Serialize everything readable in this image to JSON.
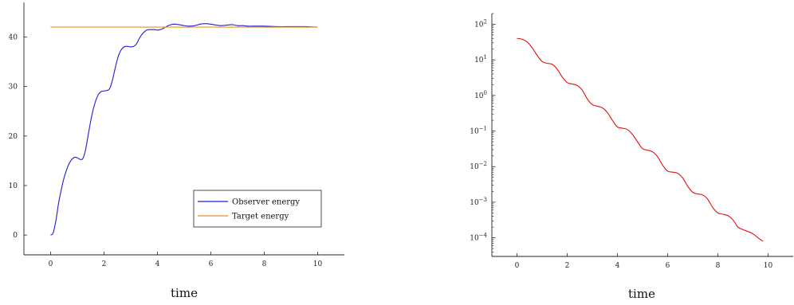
{
  "chart_data": [
    {
      "type": "line",
      "xlabel": "time",
      "ylabel": "",
      "title": "",
      "xlim": [
        -1,
        11
      ],
      "ylim": [
        -4,
        47
      ],
      "xticks": [
        0,
        2,
        4,
        6,
        8,
        10
      ],
      "yticks": [
        0,
        10,
        20,
        30,
        40
      ],
      "xtick_labels": [
        "0",
        "2",
        "4",
        "6",
        "8",
        "10"
      ],
      "ytick_labels": [
        "0",
        "10",
        "20",
        "30",
        "40"
      ],
      "legend_position": "bottom-right",
      "series": [
        {
          "name": "Observer energy",
          "color": "#1f1fd0",
          "x": [
            0,
            0.05,
            0.1,
            0.2,
            0.3,
            0.4,
            0.5,
            0.6,
            0.7,
            0.8,
            0.9,
            1.0,
            1.1,
            1.2,
            1.3,
            1.4,
            1.5,
            1.6,
            1.7,
            1.8,
            1.9,
            2.0,
            2.1,
            2.2,
            2.3,
            2.4,
            2.5,
            2.6,
            2.7,
            2.8,
            2.9,
            3.0,
            3.1,
            3.2,
            3.3,
            3.4,
            3.5,
            3.6,
            3.7,
            3.8,
            3.9,
            4.0,
            4.1,
            4.2,
            4.3,
            4.4,
            4.6,
            4.8,
            5.0,
            5.2,
            5.4,
            5.6,
            5.8,
            6.0,
            6.2,
            6.4,
            6.6,
            6.8,
            7.0,
            7.2,
            7.4,
            7.6,
            7.8,
            8.0,
            8.5,
            9.0,
            9.5,
            10.0
          ],
          "y": [
            0,
            0.1,
            0.5,
            3.0,
            6.5,
            9.2,
            11.5,
            13.2,
            14.5,
            15.3,
            15.7,
            15.6,
            15.3,
            15.4,
            17.0,
            20.0,
            23.0,
            25.5,
            27.3,
            28.5,
            29.0,
            29.1,
            29.2,
            29.5,
            31.0,
            33.3,
            35.5,
            37.0,
            37.8,
            38.1,
            38.1,
            38.0,
            38.1,
            38.5,
            39.5,
            40.4,
            41.0,
            41.4,
            41.5,
            41.5,
            41.5,
            41.4,
            41.5,
            41.7,
            42.0,
            42.3,
            42.6,
            42.5,
            42.3,
            42.2,
            42.3,
            42.6,
            42.7,
            42.6,
            42.4,
            42.3,
            42.4,
            42.5,
            42.3,
            42.3,
            42.2,
            42.2,
            42.2,
            42.2,
            42.1,
            42.1,
            42.1,
            42.0
          ]
        },
        {
          "name": "Target energy",
          "color": "#e8902a",
          "x": [
            0,
            10
          ],
          "y": [
            42.0,
            42.0
          ]
        }
      ]
    },
    {
      "type": "line",
      "xlabel": "time",
      "ylabel": "",
      "title": "",
      "xlim": [
        -1,
        11
      ],
      "yscale": "log",
      "ylim": [
        3e-05,
        200
      ],
      "xticks": [
        0,
        2,
        4,
        6,
        8,
        10
      ],
      "xtick_labels": [
        "0",
        "2",
        "4",
        "6",
        "8",
        "10"
      ],
      "yticks": [
        0.0001,
        0.001,
        0.01,
        0.1,
        1,
        10,
        100
      ],
      "ytick_labels": [
        {
          "base": "10",
          "exp": "−4"
        },
        {
          "base": "10",
          "exp": "−3"
        },
        {
          "base": "10",
          "exp": "−2"
        },
        {
          "base": "10",
          "exp": "−1"
        },
        {
          "base": "10",
          "exp": "0"
        },
        {
          "base": "10",
          "exp": "1"
        },
        {
          "base": "10",
          "exp": "2"
        }
      ],
      "series": [
        {
          "color": "#e01010",
          "x": [
            0.0,
            0.2,
            0.4,
            0.6,
            0.8,
            1.0,
            1.2,
            1.4,
            1.6,
            1.8,
            2.0,
            2.2,
            2.4,
            2.6,
            2.8,
            3.0,
            3.2,
            3.4,
            3.6,
            3.8,
            4.0,
            4.2,
            4.4,
            4.6,
            4.8,
            5.0,
            5.2,
            5.4,
            5.6,
            5.8,
            6.0,
            6.2,
            6.4,
            6.6,
            6.8,
            7.0,
            7.2,
            7.4,
            7.6,
            7.8,
            8.0,
            8.2,
            8.4,
            8.6,
            8.8,
            9.0,
            9.2,
            9.4,
            9.6,
            9.8
          ],
          "y": [
            40.0,
            38.0,
            32.0,
            22.0,
            13.5,
            9.0,
            8.0,
            7.5,
            5.5,
            3.3,
            2.3,
            2.1,
            1.9,
            1.4,
            0.8,
            0.55,
            0.5,
            0.45,
            0.33,
            0.2,
            0.13,
            0.12,
            0.11,
            0.08,
            0.05,
            0.032,
            0.029,
            0.026,
            0.019,
            0.011,
            0.0075,
            0.007,
            0.0065,
            0.0048,
            0.0028,
            0.0019,
            0.0017,
            0.0016,
            0.0012,
            0.0007,
            0.0005,
            0.00046,
            0.00042,
            0.00032,
            0.0002,
            0.00017,
            0.00015,
            0.00013,
            0.0001,
            8e-05
          ]
        }
      ]
    }
  ]
}
